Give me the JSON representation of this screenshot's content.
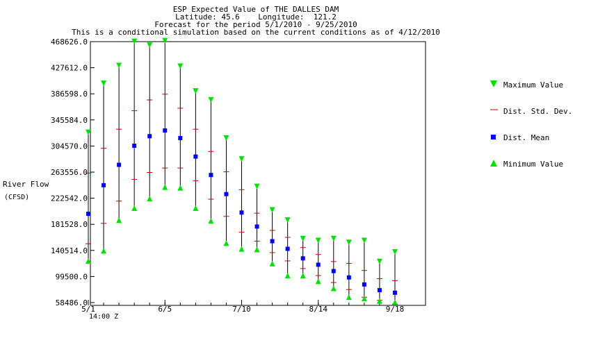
{
  "header": {
    "title": "ESP Expected Value of THE DALLES DAM",
    "coords": "Latitude: 45.6    Longitude:  121.2",
    "period": "Forecast for the period 5/1/2010 - 9/25/2010",
    "note": "This is a conditional simulation based on the current conditions as of 4/12/2010"
  },
  "axis": {
    "ylabel": "River Flow",
    "yunit": "(CFSD)",
    "xnote": "14:00 Z"
  },
  "legend": {
    "max": "Maximum Value",
    "std": "Dist. Std. Dev.",
    "mean": "Dist. Mean",
    "min": "Minimum Value"
  },
  "colors": {
    "max": "#00e000",
    "min": "#00e000",
    "mean": "#0000ff",
    "std": "#c00000",
    "whisker": "#000000"
  },
  "chart_data": {
    "type": "scatter",
    "title": "ESP Expected Value of THE DALLES DAM",
    "ylabel": "River Flow (CFSD)",
    "ylim": [
      58486.0,
      468626.0
    ],
    "yticks": [
      "468626.0",
      "427612.0",
      "386598.0",
      "345584.0",
      "304570.0",
      "263556.0",
      "222542.0",
      "181528.0",
      "140514.0",
      "99500.0",
      "58486.0"
    ],
    "xticks": [
      {
        "label": "5/1",
        "day": 0
      },
      {
        "label": "6/5",
        "day": 35
      },
      {
        "label": "7/10",
        "day": 70
      },
      {
        "label": "8/14",
        "day": 105
      },
      {
        "label": "9/18",
        "day": 140
      }
    ],
    "xlim_days": [
      0,
      151
    ],
    "series": [
      {
        "name": "Maximum Value",
        "marker": "triangle-down",
        "values": [
          325000,
          402000,
          430000,
          468000,
          462000,
          469000,
          429000,
          390000,
          376000,
          316000,
          283000,
          240000,
          203000,
          187000,
          158000,
          155000,
          158000,
          152000,
          155000,
          122000,
          137000
        ]
      },
      {
        "name": "Dist. Std. Dev. (upper)",
        "marker": "dash",
        "values": [
          262000,
          301000,
          331000,
          360000,
          377000,
          386000,
          364000,
          331000,
          296000,
          264000,
          236000,
          199000,
          172000,
          161000,
          145000,
          134000,
          123000,
          120000,
          109000,
          96000,
          93000
        ]
      },
      {
        "name": "Dist. Mean",
        "marker": "square",
        "values": [
          198000,
          243000,
          275000,
          305000,
          320000,
          329000,
          317000,
          288000,
          259000,
          229000,
          200000,
          178000,
          155000,
          143000,
          128000,
          118000,
          108000,
          98000,
          87000,
          78000,
          74000
        ]
      },
      {
        "name": "Dist. Std. Dev. (lower)",
        "marker": "dash",
        "values": [
          151000,
          183000,
          218000,
          252000,
          263000,
          270000,
          270000,
          250000,
          221000,
          194000,
          169000,
          155000,
          137000,
          124000,
          112000,
          101000,
          90000,
          79000,
          67000,
          62000,
          56000
        ]
      },
      {
        "name": "Minimum Value",
        "marker": "triangle-up",
        "values": [
          125000,
          141000,
          189000,
          208000,
          223000,
          241000,
          240000,
          208000,
          188000,
          153000,
          144000,
          143000,
          121000,
          102000,
          102000,
          93000,
          82000,
          68000,
          66000,
          62000,
          60000
        ]
      }
    ],
    "x_days": [
      0,
      7,
      14,
      21,
      28,
      35,
      42,
      49,
      56,
      63,
      70,
      77,
      84,
      91,
      98,
      105,
      112,
      119,
      126,
      133,
      140
    ],
    "grid": false,
    "legend_position": "right"
  }
}
